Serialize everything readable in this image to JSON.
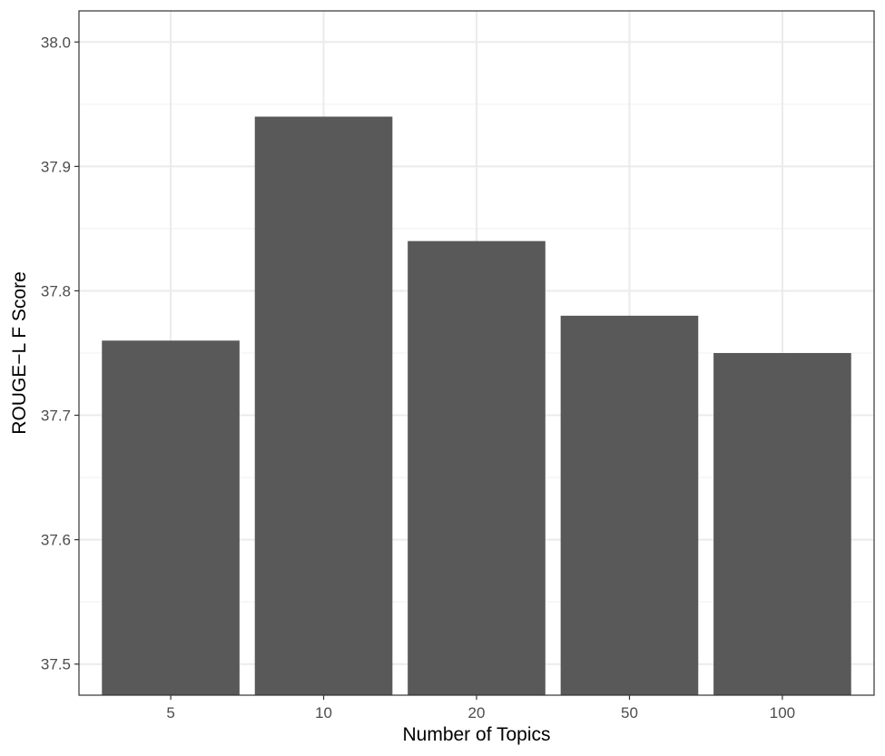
{
  "chart_data": {
    "type": "bar",
    "title": "",
    "xlabel": "Number of Topics",
    "ylabel": "ROUGE−L F Score",
    "categories": [
      "5",
      "10",
      "20",
      "50",
      "100"
    ],
    "values": [
      37.76,
      37.94,
      37.84,
      37.78,
      37.75
    ],
    "ylim": [
      37.475,
      38.025
    ],
    "yticks": [
      37.5,
      37.6,
      37.7,
      37.8,
      37.9,
      38.0
    ],
    "ytick_labels": [
      "37.5",
      "37.6",
      "37.7",
      "37.8",
      "37.9",
      "38.0"
    ],
    "grid": true,
    "legend": "none",
    "colors": {
      "bar": "#595959",
      "panel_border": "#333333",
      "grid_major": "#ebebeb",
      "grid_minor": "#f3f3f3",
      "tick_text": "#4d4d4d",
      "axis_title": "#000000"
    }
  }
}
